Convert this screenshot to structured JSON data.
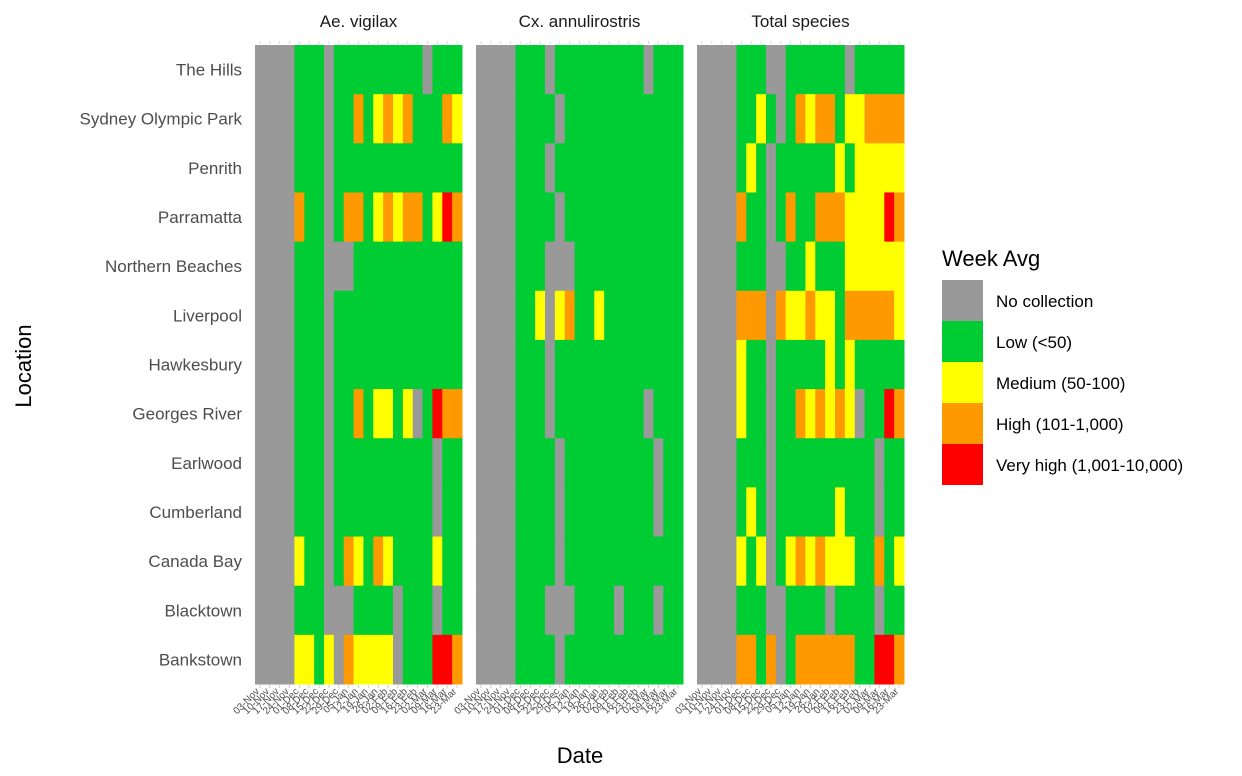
{
  "chart_data": {
    "type": "heatmap",
    "xlabel": "Date",
    "ylabel": "Location",
    "facets": [
      "Ae. vigilax",
      "Cx. annulirostris",
      "Total species"
    ],
    "locations": [
      "The Hills",
      "Sydney Olympic Park",
      "Penrith",
      "Parramatta",
      "Northern Beaches",
      "Liverpool",
      "Hawkesbury",
      "Georges River",
      "Earlwood",
      "Cumberland",
      "Canada Bay",
      "Blacktown",
      "Bankstown"
    ],
    "dates": [
      "03-Nov",
      "10-Nov",
      "17-Nov",
      "24-Nov",
      "01-Dec",
      "08-Dec",
      "15-Dec",
      "22-Dec",
      "29-Dec",
      "05-Jan",
      "12-Jan",
      "19-Jan",
      "26-Jan",
      "02-Feb",
      "09-Feb",
      "16-Feb",
      "23-Feb",
      "02-Mar",
      "09-Mar",
      "16-Mar",
      "23-Mar"
    ],
    "legend": {
      "title": "Week Avg",
      "placement": "right",
      "categories": [
        {
          "code": "N",
          "label": "No collection",
          "color": "#999999"
        },
        {
          "code": "L",
          "label": "Low (<50)",
          "color": "#00CC33"
        },
        {
          "code": "M",
          "label": "Medium (50-100)",
          "color": "#FFFF00"
        },
        {
          "code": "H",
          "label": "High (101-1,000)",
          "color": "#FF9900"
        },
        {
          "code": "V",
          "label": "Very high (1,001-10,000)",
          "color": "#FF0000"
        }
      ]
    },
    "cells": {
      "Ae. vigilax": {
        "The Hills": "NNNNLLLNLLLLLLLLLNLLL",
        "Sydney Olympic Park": "NNNNLLLNLLHLMHMHLLLHM",
        "Penrith": "NNNNLLLNLLLLLLLLLLLLL",
        "Parramatta": "NNNNHLLNLHHLMHMHHLMVH",
        "Northern Beaches": "NNNNLLLNNNLLLLLLLLLLL",
        "Liverpool": "NNNNLLLNLLLLLLLLLLLLL",
        "Hawkesbury": "NNNNLLLNLLLLLLLLLLLLL",
        "Georges River": "NNNNLLLNLLHLMMLMNLVHH",
        "Earlwood": "NNNNLLLNLLLLLLLLLLNLL",
        "Cumberland": "NNNNLLLNLLLLLLLLLLNLL",
        "Canada Bay": "NNNNMLLNLHMLHMLLLLMLL",
        "Blacktown": "NNNNLLLNNNLLLLNLLLNLL",
        "Bankstown": "NNNNMMLMNHMMMMNLLLVVH"
      },
      "Cx. annulirostris": {
        "The Hills": "NNNNLLLNLLLLLLLLLNLLL",
        "Sydney Olympic Park": "NNNNLLLLNLLLLLLLLLLLL",
        "Penrith": "NNNNLLLNLLLLLLLLLLLLL",
        "Parramatta": "NNNNLLLLNLLLLLLLLLLLL",
        "Northern Beaches": "NNNNLLLNNNLLLLLLLLLLL",
        "Liverpool": "NNNNLLMNMHLLMLLLLLLLL",
        "Hawkesbury": "NNNNLLLNLLLLLLLLLLLLL",
        "Georges River": "NNNNLLLNLLLLLLLLLNLLL",
        "Earlwood": "NNNNLLLLNLLLLLLLLLNLL",
        "Cumberland": "NNNNLLLLNLLLLLLLLLNLL",
        "Canada Bay": "NNNNLLLLNLLLLLLLLLLLL",
        "Blacktown": "NNNNLLLNNNLLLLNLLLNLL",
        "Bankstown": "NNNNLLLLNLLLLLLLLLLLL"
      },
      "Total species": {
        "The Hills": "NNNNLLLNNLLLLLLNLLLLL",
        "Sydney Olympic Park": "NNNNLLMLNLHMHHLMMHHHH",
        "Penrith": "NNNNLMLNLLLLLLMLMMMMM",
        "Parramatta": "NNNNHLLNLHLLHHHMMMMVH",
        "Northern Beaches": "NNNNLLLNNLLMLLLMMMMMM",
        "Liverpool": "NNNNHHHNHMMHMMLHHHHHM",
        "Hawkesbury": "NNNNMLLNLLLLLMLMLLLLL",
        "Georges River": "NNNNMLLNLLHMHMHMNLLVH",
        "Earlwood": "NNNNLLLNLLLLLLLLLLNLL",
        "Cumberland": "NNNNLMLNLLLLLLMLLLNLL",
        "Canada Bay": "NNNNMLMNLMHMHMMMLLHLM",
        "Blacktown": "NNNNLLLNNLLLLNLLLLNLL",
        "Bankstown": "NNNNHHLHNLHHHHHHLLVVH"
      }
    }
  }
}
